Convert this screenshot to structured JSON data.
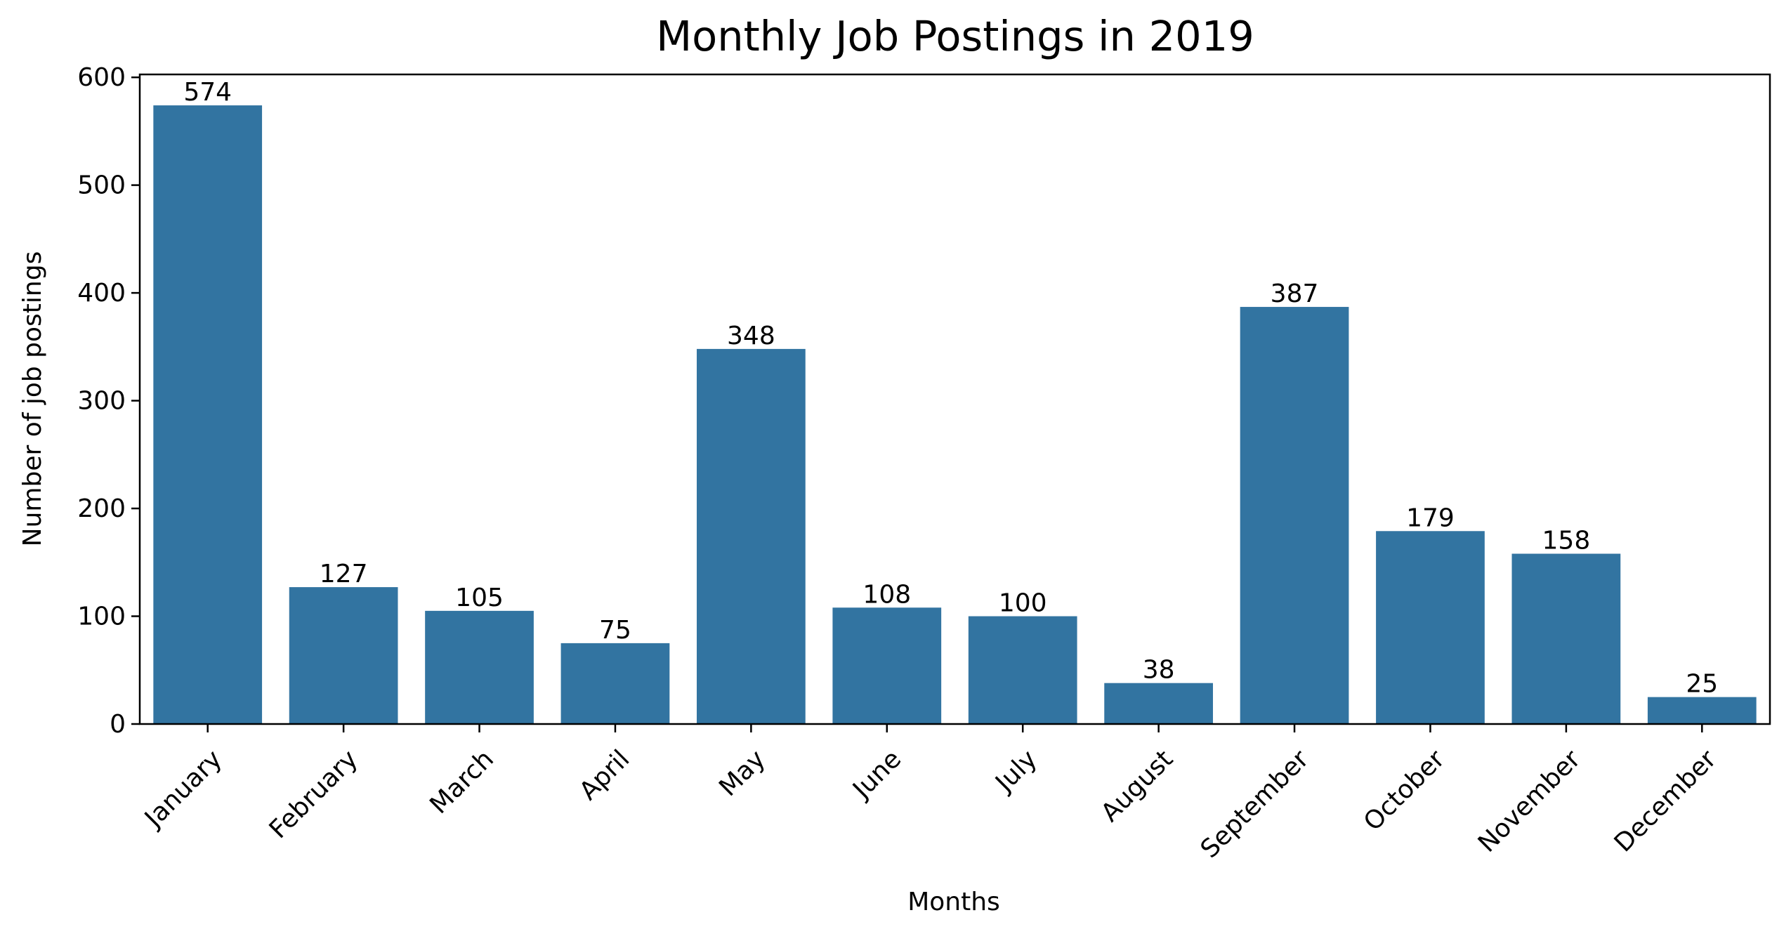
{
  "chart_data": {
    "type": "bar",
    "title": "Monthly Job Postings in 2019",
    "xlabel": "Months",
    "ylabel": "Number of job postings",
    "categories": [
      "January",
      "February",
      "March",
      "April",
      "May",
      "June",
      "July",
      "August",
      "September",
      "October",
      "November",
      "December"
    ],
    "values": [
      574,
      127,
      105,
      75,
      348,
      108,
      100,
      38,
      387,
      179,
      158,
      25
    ],
    "data_labels": [
      "574",
      "127",
      "105",
      "75",
      "348",
      "108",
      "100",
      "38",
      "387",
      "179",
      "158",
      "25"
    ],
    "yticks": [
      0,
      100,
      200,
      300,
      400,
      500,
      600
    ],
    "ytick_labels": [
      "0",
      "100",
      "200",
      "300",
      "400",
      "500",
      "600"
    ],
    "ylim": [
      0,
      602.7
    ],
    "grid": false,
    "legend": "none",
    "colors": {
      "bar": "#3274a1",
      "axis": "#000000",
      "text": "#000000",
      "background": "#ffffff"
    }
  }
}
